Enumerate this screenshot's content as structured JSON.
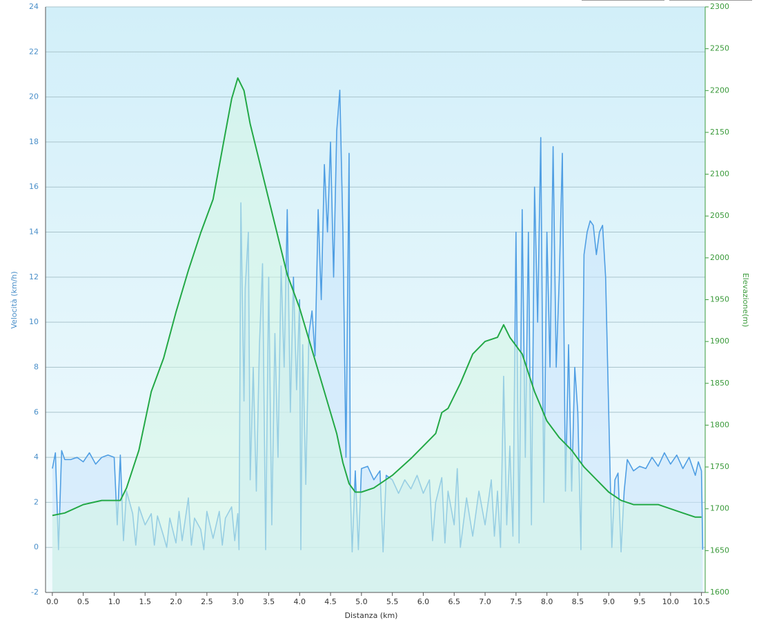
{
  "chart_data": {
    "type": "line",
    "x_label": "Distanza  (km)",
    "y_label": "Velocità (km/h)",
    "y2_label": "Elevazione(m)",
    "xlim": [
      -0.11,
      10.56
    ],
    "ylim": [
      -2,
      24
    ],
    "y2lim": [
      1600,
      2300
    ],
    "xticks": [
      {
        "value": 0,
        "label": "0.0"
      },
      0.5,
      {
        "value": 1,
        "label": "1.0"
      },
      1.5,
      {
        "value": 2,
        "label": "2.0"
      },
      2.5,
      {
        "value": 3,
        "label": "3.0"
      },
      3.5,
      {
        "value": 4,
        "label": "4.0"
      },
      4.5,
      {
        "value": 5,
        "label": "5.0"
      },
      5.5,
      {
        "value": 6,
        "label": "6.0"
      },
      6.5,
      {
        "value": 7,
        "label": "7.0"
      },
      7.5,
      {
        "value": 8,
        "label": "8.0"
      },
      8.5,
      {
        "value": 9,
        "label": "9.0"
      },
      9.5,
      {
        "value": 10,
        "label": "10.0"
      },
      10.5
    ],
    "yticks": [
      -2,
      0,
      2,
      4,
      6,
      8,
      10,
      12,
      14,
      16,
      18,
      20,
      22,
      24
    ],
    "y2ticks": [
      1600,
      1650,
      1700,
      1750,
      1800,
      1850,
      1900,
      1950,
      2000,
      2050,
      2100,
      2150,
      2200,
      2250,
      2300
    ],
    "grid": true,
    "series": [
      {
        "name": "Velocità",
        "color": "#4f9ee3",
        "fill": "#c9e4fb",
        "x": [
          0,
          0.05,
          0.1,
          0.15,
          0.2,
          0.3,
          0.4,
          0.5,
          0.6,
          0.7,
          0.8,
          0.9,
          1.0,
          1.05,
          1.1,
          1.15,
          1.2,
          1.3,
          1.35,
          1.4,
          1.5,
          1.6,
          1.65,
          1.7,
          1.8,
          1.85,
          1.9,
          2.0,
          2.05,
          2.1,
          2.2,
          2.25,
          2.3,
          2.4,
          2.45,
          2.5,
          2.6,
          2.7,
          2.75,
          2.8,
          2.9,
          2.95,
          3.0,
          3.02,
          3.05,
          3.1,
          3.12,
          3.17,
          3.2,
          3.25,
          3.3,
          3.35,
          3.4,
          3.45,
          3.5,
          3.55,
          3.6,
          3.65,
          3.7,
          3.75,
          3.8,
          3.85,
          3.9,
          3.95,
          4.0,
          4.02,
          4.05,
          4.1,
          4.15,
          4.2,
          4.25,
          4.3,
          4.35,
          4.4,
          4.45,
          4.5,
          4.55,
          4.6,
          4.65,
          4.7,
          4.75,
          4.8,
          4.82,
          4.85,
          4.9,
          4.95,
          5.0,
          5.1,
          5.2,
          5.3,
          5.35,
          5.4,
          5.5,
          5.6,
          5.7,
          5.8,
          5.9,
          6.0,
          6.1,
          6.15,
          6.2,
          6.3,
          6.35,
          6.4,
          6.5,
          6.55,
          6.6,
          6.7,
          6.8,
          6.9,
          7.0,
          7.1,
          7.15,
          7.2,
          7.25,
          7.3,
          7.35,
          7.4,
          7.45,
          7.5,
          7.55,
          7.6,
          7.65,
          7.7,
          7.75,
          7.8,
          7.85,
          7.9,
          7.95,
          8.0,
          8.05,
          8.1,
          8.15,
          8.2,
          8.25,
          8.3,
          8.35,
          8.4,
          8.45,
          8.5,
          8.55,
          8.6,
          8.65,
          8.7,
          8.75,
          8.8,
          8.85,
          8.9,
          8.95,
          9.0,
          9.05,
          9.1,
          9.15,
          9.2,
          9.25,
          9.3,
          9.4,
          9.5,
          9.6,
          9.7,
          9.8,
          9.9,
          10.0,
          10.1,
          10.2,
          10.3,
          10.4,
          10.45,
          10.5,
          10.52
        ],
        "values": [
          3.5,
          4.2,
          -0.1,
          4.3,
          3.9,
          3.9,
          4.0,
          3.8,
          4.2,
          3.7,
          4.0,
          4.1,
          4.0,
          1.0,
          4.1,
          0.3,
          2.5,
          1.5,
          0.1,
          1.8,
          1.0,
          1.5,
          0.1,
          1.4,
          0.5,
          0,
          1.3,
          0.2,
          1.6,
          0.3,
          2.2,
          0.1,
          1.3,
          0.8,
          -0.1,
          1.6,
          0.4,
          1.6,
          0.1,
          1.3,
          1.8,
          0.3,
          1.5,
          -0.1,
          15.3,
          6.5,
          11.5,
          14,
          3,
          8,
          2.5,
          9,
          12.6,
          -0.1,
          12,
          1.0,
          9.5,
          4,
          12.5,
          8,
          15,
          6,
          12,
          7,
          11,
          -0.1,
          9,
          2.8,
          9.5,
          10.5,
          8.5,
          15,
          11,
          17,
          14,
          18,
          12,
          18.5,
          20.3,
          14,
          4,
          17.5,
          2.5,
          -0.2,
          3.4,
          -0.1,
          3.5,
          3.6,
          3.0,
          3.4,
          -0.2,
          3.2,
          3.0,
          2.4,
          3.0,
          2.6,
          3.2,
          2.4,
          3.0,
          0.3,
          2.0,
          3.1,
          0.2,
          2.5,
          1.0,
          3.5,
          0,
          2.2,
          0.5,
          2.5,
          1.0,
          3.0,
          0.5,
          2.5,
          0,
          7.6,
          1,
          4.5,
          0.5,
          14,
          0.2,
          15,
          4,
          14,
          1,
          16,
          10,
          18.2,
          2,
          14,
          8,
          17.8,
          8,
          12,
          17.5,
          2.5,
          9,
          2.5,
          8,
          6,
          -0.1,
          13,
          14,
          14.5,
          14.3,
          13,
          14,
          14.3,
          12,
          6,
          0,
          3,
          3.3,
          -0.2,
          2.5,
          3.9,
          3.4,
          3.6,
          3.5,
          4.0,
          3.6,
          4.2,
          3.7,
          4.1,
          3.5,
          4.0,
          3.2,
          3.8,
          3.4,
          -0.1
        ]
      },
      {
        "name": "Elevazione",
        "color": "#22a845",
        "fill": "#d4f5e4",
        "axis": "y2",
        "x": [
          0,
          0.2,
          0.5,
          0.8,
          1.0,
          1.1,
          1.2,
          1.4,
          1.6,
          1.8,
          2.0,
          2.2,
          2.4,
          2.6,
          2.8,
          2.9,
          3.0,
          3.1,
          3.2,
          3.4,
          3.6,
          3.8,
          4.0,
          4.2,
          4.4,
          4.6,
          4.7,
          4.8,
          4.9,
          5.0,
          5.2,
          5.5,
          5.8,
          6.0,
          6.2,
          6.3,
          6.4,
          6.6,
          6.8,
          7.0,
          7.2,
          7.3,
          7.4,
          7.6,
          7.8,
          8.0,
          8.2,
          8.4,
          8.6,
          8.8,
          9.0,
          9.2,
          9.4,
          9.8,
          10.0,
          10.2,
          10.4,
          10.5
        ],
        "values": [
          1692,
          1695,
          1705,
          1710,
          1710,
          1710,
          1725,
          1770,
          1840,
          1880,
          1935,
          1985,
          2030,
          2070,
          2150,
          2190,
          2215,
          2200,
          2160,
          2100,
          2040,
          1980,
          1940,
          1890,
          1840,
          1790,
          1755,
          1730,
          1720,
          1720,
          1725,
          1740,
          1760,
          1775,
          1790,
          1815,
          1820,
          1850,
          1885,
          1900,
          1905,
          1920,
          1905,
          1885,
          1840,
          1805,
          1785,
          1770,
          1750,
          1735,
          1720,
          1710,
          1705,
          1705,
          1700,
          1695,
          1690,
          1690
        ]
      }
    ]
  }
}
